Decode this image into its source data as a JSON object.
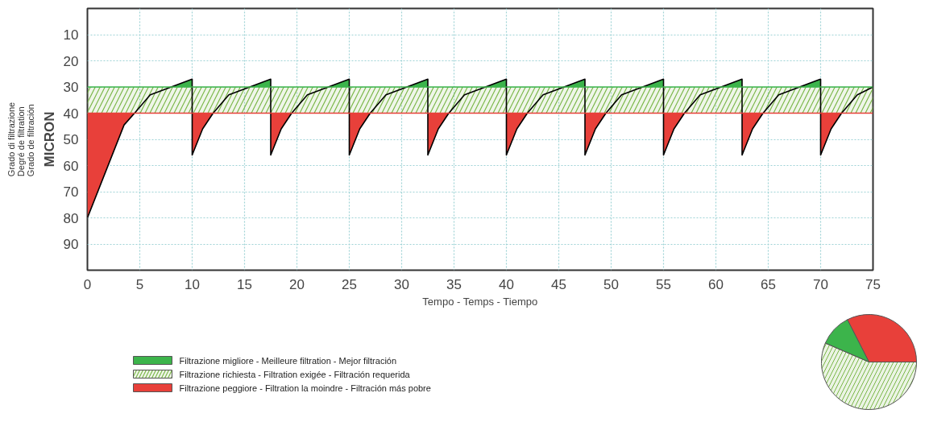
{
  "chart_data": [
    {
      "type": "line",
      "xlabel": "Tempo - Temps - Tiempo",
      "ylabel": "MICRON",
      "annotations": [
        "Grado di filtrazione\nDegré de filtration\nGrado de filtración"
      ],
      "x": [
        0,
        3.5,
        4.5,
        6,
        10,
        10,
        11,
        12,
        13.5,
        17.5,
        17.5,
        18.5,
        19.5,
        21,
        25,
        25,
        26,
        27,
        28.5,
        32.5,
        32.5,
        33.5,
        34.5,
        36,
        40,
        40,
        41,
        42,
        43.5,
        47.5,
        47.5,
        48.5,
        49.5,
        51,
        55,
        55,
        56,
        57,
        58.5,
        62.5,
        62.5,
        63.5,
        64.5,
        66,
        70,
        70,
        71,
        72,
        73.5,
        75
      ],
      "series": [
        {
          "name": "Filtrazione migliore - Meilleure filtration - Mejor filtración",
          "type": "area",
          "color": "#3cb44b",
          "x": [
            8,
            10,
            10,
            15.5,
            17.5,
            17.5,
            23,
            25,
            25,
            30.5,
            32.5,
            32.5,
            38,
            40,
            40,
            45.5,
            47.5,
            47.5,
            53,
            55,
            55,
            60.5,
            62.5,
            62.5,
            68,
            70,
            70
          ],
          "values": [
            30,
            27,
            30,
            30,
            27,
            30,
            30,
            27,
            30,
            30,
            27,
            30,
            30,
            27,
            30,
            30,
            27,
            30,
            30,
            27,
            30,
            30,
            27,
            30,
            30,
            27,
            30
          ]
        },
        {
          "name": "Filtrazione peggiore - Filtration la moindre - Filtración más pobre",
          "type": "area",
          "color": "#e8403a",
          "x": [
            0,
            3.5,
            4.5,
            10,
            10,
            11,
            12,
            17.5,
            17.5,
            18.5,
            19.5,
            25,
            25,
            26,
            27,
            32.5,
            32.5,
            33.5,
            34.5,
            40,
            40,
            41,
            42,
            47.5,
            47.5,
            48.5,
            49.5,
            55,
            55,
            56,
            57,
            62.5,
            62.5,
            63.5,
            64.5,
            70,
            70,
            71,
            72
          ],
          "values": [
            80,
            44.5,
            40,
            40,
            56,
            46,
            40,
            40,
            56,
            46,
            40,
            40,
            56,
            46,
            40,
            40,
            56,
            46,
            40,
            40,
            56,
            46,
            40,
            40,
            56,
            46,
            40,
            40,
            56,
            46,
            40,
            40,
            56,
            46,
            40,
            40,
            56,
            46,
            40
          ]
        },
        {
          "color": "#000000",
          "values": [
            80,
            44.5,
            40,
            33,
            27,
            56,
            46,
            40,
            33,
            27,
            56,
            46,
            40,
            33,
            27,
            56,
            46,
            40,
            33,
            27,
            56,
            46,
            40,
            33,
            27,
            56,
            46,
            40,
            33,
            27,
            56,
            46,
            40,
            33,
            27,
            56,
            46,
            40,
            33,
            27,
            56,
            46,
            40,
            33,
            27,
            56,
            46,
            40,
            33,
            30
          ]
        }
      ],
      "xlim": [
        0,
        75
      ],
      "ylim": [
        100,
        0
      ],
      "xticks": [
        0,
        5,
        10,
        15,
        20,
        25,
        30,
        35,
        40,
        45,
        50,
        55,
        60,
        65,
        70,
        75
      ],
      "yticks": [
        10,
        20,
        30,
        40,
        50,
        60,
        70,
        80,
        90
      ],
      "bands": [
        {
          "axis": "y",
          "from": 30,
          "to": 40,
          "label": "Filtrazione richiesta - Filtration exigée - Filtración requerida",
          "color": "#7ab648"
        }
      ],
      "ref_lines": [
        {
          "axis": "y",
          "value": 30,
          "color": "#3cb44b"
        },
        {
          "axis": "y",
          "value": 40,
          "color": "#e8403a"
        }
      ],
      "grid": true,
      "legend": "bottom"
    },
    {
      "type": "pie",
      "categories": [
        null,
        null,
        null
      ],
      "values": [
        32.5,
        11,
        56.5
      ],
      "colors": [
        "#e8403a",
        "#3cb44b",
        "#7ab648"
      ]
    }
  ]
}
